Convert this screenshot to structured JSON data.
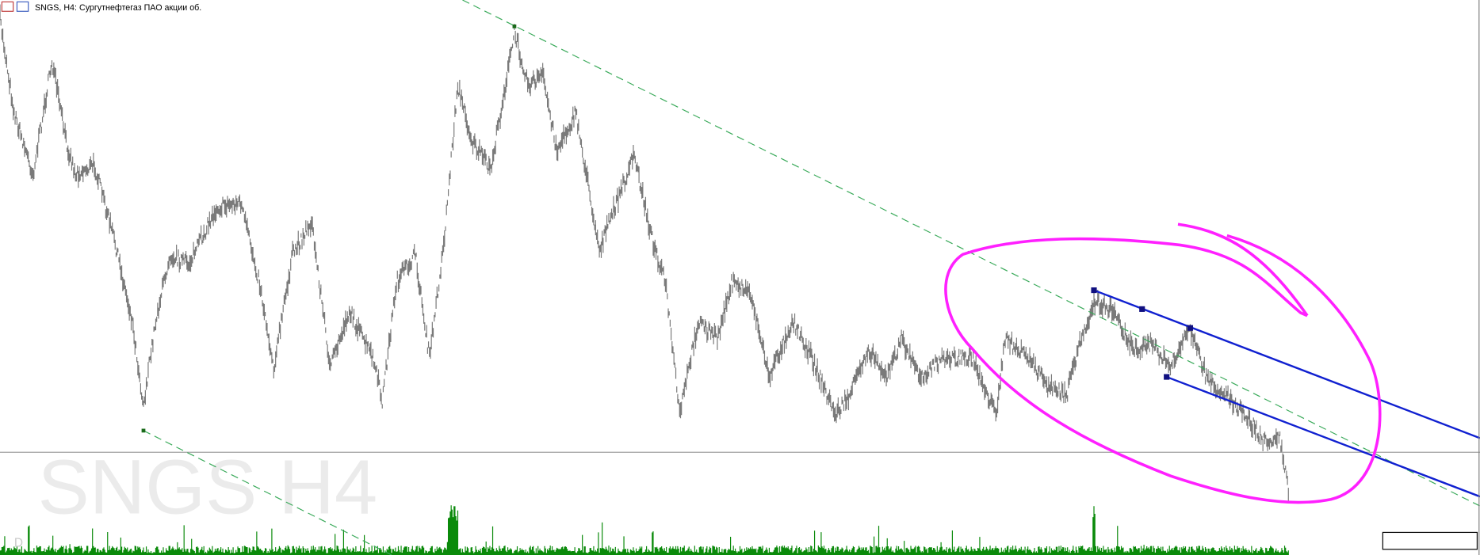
{
  "header": {
    "title": "SNGS, H4:  Сургутнефтегаз ПАО акции об."
  },
  "watermark": "SNGS H4",
  "subwindow_label": "D"
}
